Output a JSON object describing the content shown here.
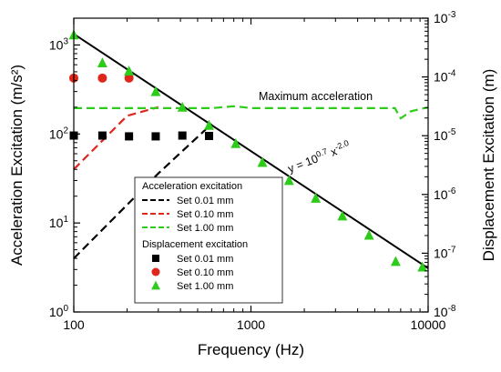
{
  "chart_data": {
    "type": "scatter",
    "xlabel": "Frequency (Hz)",
    "ylabel_left": "Acceleration Excitation (m/s²)",
    "ylabel_right": "Displacement Excitation (m)",
    "x_scale": "log",
    "y_scale": "log",
    "xlim": [
      100,
      10000
    ],
    "ylim_left": [
      1,
      2000
    ],
    "ylim_right": [
      1e-08,
      0.001
    ],
    "x_ticks": [
      {
        "v": 100,
        "label": "100"
      },
      {
        "v": 1000,
        "label": "1000"
      },
      {
        "v": 10000,
        "label": "10000"
      }
    ],
    "y_ticks_left": [
      {
        "v": 1,
        "base": "10",
        "exp": "0"
      },
      {
        "v": 10,
        "base": "10",
        "exp": "1"
      },
      {
        "v": 100,
        "base": "10",
        "exp": "2"
      },
      {
        "v": 1000,
        "base": "10",
        "exp": "3"
      }
    ],
    "y_ticks_right": [
      {
        "v": 1e-08,
        "base": "10",
        "exp": "-8"
      },
      {
        "v": 1e-07,
        "base": "10",
        "exp": "-7"
      },
      {
        "v": 1e-06,
        "base": "10",
        "exp": "-6"
      },
      {
        "v": 1e-05,
        "base": "10",
        "exp": "-5"
      },
      {
        "v": 0.0001,
        "base": "10",
        "exp": "-4"
      },
      {
        "v": 0.001,
        "base": "10",
        "exp": "-3"
      }
    ],
    "annotations": {
      "max_accel": "Maximum acceleration",
      "fit": {
        "prefix": "y = 10",
        "exp1": "0.7",
        "mid": " x",
        "exp2": "-2.0"
      }
    },
    "fit_line": {
      "name": "y = 10^0.7 x^-2.0",
      "x": [
        100,
        10000
      ],
      "y": [
        1330,
        3.1
      ],
      "color": "#000000"
    },
    "acceleration_series": [
      {
        "name": "Set 0.01 mm",
        "color": "#000000",
        "x": [
          100,
          300,
          600
        ],
        "y": [
          4,
          36,
          130
        ]
      },
      {
        "name": "Set 0.10 mm",
        "color": "#e0251b",
        "x": [
          100,
          200,
          300
        ],
        "y": [
          40,
          160,
          200
        ]
      },
      {
        "name": "Set 1.00 mm",
        "color": "#2ecc1a",
        "x": [
          100,
          600,
          800,
          900,
          1000,
          2000,
          3000,
          5000,
          6500,
          6800,
          7000,
          8000,
          9500,
          10000
        ],
        "y": [
          195,
          195,
          205,
          200,
          195,
          195,
          195,
          195,
          195,
          165,
          150,
          180,
          195,
          198
        ]
      }
    ],
    "displacement_series": [
      {
        "name": "Set 0.01 mm",
        "color": "#000000",
        "marker": "square",
        "x": [
          100,
          145,
          205,
          290,
          410,
          580
        ],
        "y": [
          96,
          96,
          94,
          94,
          96,
          95
        ]
      },
      {
        "name": "Set 0.10 mm",
        "color": "#e0251b",
        "marker": "circle",
        "x": [
          100,
          145,
          205
        ],
        "y": [
          425,
          425,
          425
        ]
      },
      {
        "name": "Set 1.00 mm",
        "color": "#2ecc1a",
        "marker": "triangle",
        "x": [
          100,
          145,
          205,
          290,
          410,
          580,
          820,
          1160,
          1640,
          2320,
          3280,
          4640,
          6560,
          9280
        ],
        "y": [
          1300,
          630,
          510,
          300,
          200,
          125,
          78,
          48,
          30,
          19,
          12,
          7.3,
          3.7,
          3.2
        ]
      }
    ],
    "legend": {
      "placement": "bottom-center",
      "acceleration_header": "Acceleration excitation",
      "displacement_header": "Displacement excitation",
      "acceleration_items": [
        "Set 0.01 mm",
        "Set 0.10 mm",
        "Set 1.00 mm"
      ],
      "displacement_items": [
        "Set 0.01 mm",
        "Set 0.10 mm",
        "Set 1.00 mm"
      ]
    },
    "grid": false
  }
}
